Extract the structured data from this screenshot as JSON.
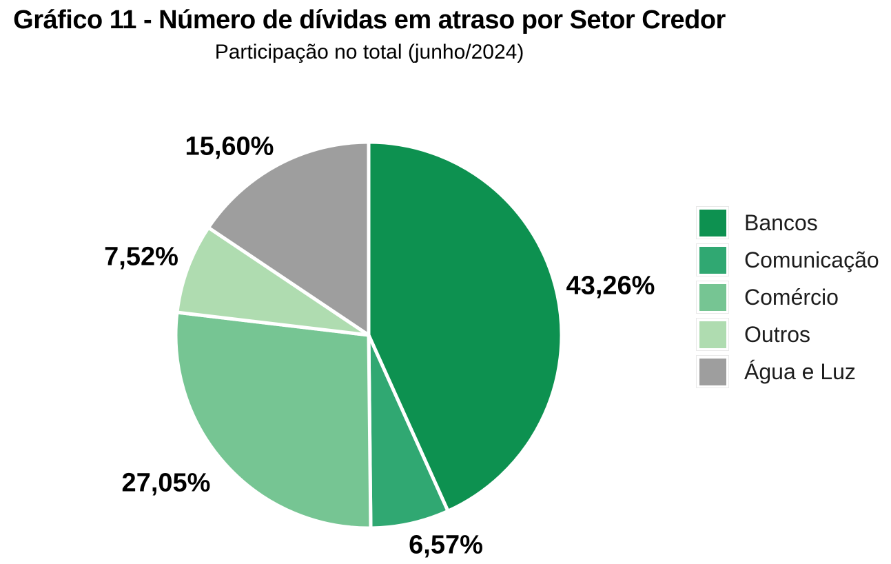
{
  "colors": {
    "background": "#FFFFFF",
    "slice_border": "#FFFFFF",
    "title_text": "#000000",
    "label_text": "#000000",
    "legend_text": "#1D1D1D",
    "legend_key_frame_border": "#E9E9E9"
  },
  "chart_data": {
    "type": "pie",
    "title": "Gráfico 11 - Número de dívidas em atraso por Setor Credor",
    "subtitle": "Participação no total (junho/2024)",
    "legend_position": "right",
    "start_angle_deg": 0,
    "direction": "clockwise",
    "decimal_separator": ",",
    "total_percent": 100,
    "slices": [
      {
        "name": "Bancos",
        "value": 43.26,
        "display": "43,26%",
        "color": "#0D9150"
      },
      {
        "name": "Comunicação",
        "value": 6.57,
        "display": "6,57%",
        "color": "#30A872"
      },
      {
        "name": "Comércio",
        "value": 27.05,
        "display": "27,05%",
        "color": "#76C593"
      },
      {
        "name": "Outros",
        "value": 7.52,
        "display": "7,52%",
        "color": "#AFDCB0"
      },
      {
        "name": "Água e Luz",
        "value": 15.6,
        "display": "15,60%",
        "color": "#9E9E9E"
      }
    ]
  }
}
